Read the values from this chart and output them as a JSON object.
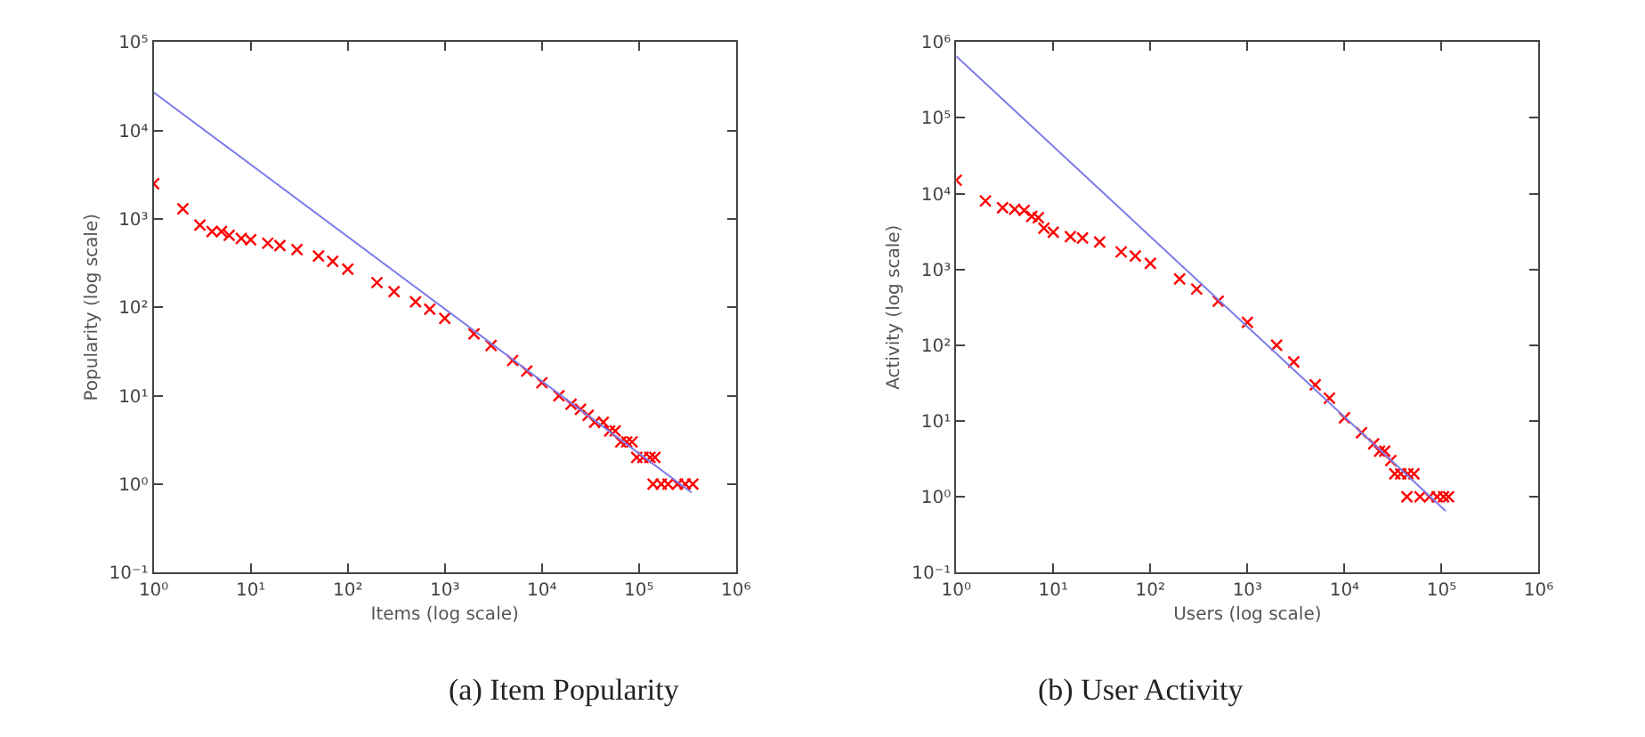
{
  "chart_data": [
    {
      "type": "scatter",
      "title": "(a) Item Popularity",
      "xlabel": "Items (log scale)",
      "ylabel": "Popularity (log scale)",
      "log": "xy",
      "xlim": [
        1,
        1000000
      ],
      "ylim": [
        0.1,
        100000
      ],
      "xticks": [
        {
          "value": 1,
          "label": "10⁰"
        },
        {
          "value": 10,
          "label": "10¹"
        },
        {
          "value": 100,
          "label": "10²"
        },
        {
          "value": 1000,
          "label": "10³"
        },
        {
          "value": 10000,
          "label": "10⁴"
        },
        {
          "value": 100000,
          "label": "10⁵"
        },
        {
          "value": 1000000,
          "label": "10⁶"
        }
      ],
      "yticks": [
        {
          "value": 0.1,
          "label": "10⁻¹"
        },
        {
          "value": 1,
          "label": "10⁰"
        },
        {
          "value": 10,
          "label": "10¹"
        },
        {
          "value": 100,
          "label": "10²"
        },
        {
          "value": 1000,
          "label": "10³"
        },
        {
          "value": 10000,
          "label": "10⁴"
        },
        {
          "value": 100000,
          "label": "10⁵"
        }
      ],
      "series": [
        {
          "marker": "cross",
          "color": "#ff0000",
          "x": [
            1,
            2,
            3,
            4,
            5,
            6,
            8,
            10,
            15,
            20,
            30,
            50,
            70,
            100,
            200,
            300,
            500,
            700,
            1000,
            2000,
            3000,
            5000,
            7000,
            10000,
            15000,
            20000,
            25000,
            30000,
            35000,
            43000,
            50000,
            57000,
            65000,
            75000,
            85000,
            95000,
            110000,
            130000,
            146000,
            140000,
            170000,
            200000,
            250000,
            300000,
            360000
          ],
          "values": [
            2500,
            1300,
            850,
            720,
            720,
            650,
            600,
            580,
            530,
            500,
            450,
            380,
            330,
            270,
            190,
            150,
            115,
            95,
            75,
            50,
            37,
            25,
            19,
            14,
            10,
            8,
            7,
            6,
            5,
            5,
            4,
            4,
            3,
            3,
            3,
            2,
            2,
            2,
            2,
            1,
            1,
            1,
            1,
            1,
            1
          ]
        },
        {
          "type": "line",
          "marker": "none",
          "line_style": "solid",
          "color": "#7b7bea",
          "x": [
            1,
            350000
          ],
          "values": [
            27000,
            0.8
          ]
        }
      ]
    },
    {
      "type": "scatter",
      "title": "(b) User Activity",
      "xlabel": "Users (log scale)",
      "ylabel": "Activity (log scale)",
      "log": "xy",
      "xlim": [
        1,
        1000000
      ],
      "ylim": [
        0.1,
        1000000
      ],
      "xticks": [
        {
          "value": 1,
          "label": "10⁰"
        },
        {
          "value": 10,
          "label": "10¹"
        },
        {
          "value": 100,
          "label": "10²"
        },
        {
          "value": 1000,
          "label": "10³"
        },
        {
          "value": 10000,
          "label": "10⁴"
        },
        {
          "value": 100000,
          "label": "10⁵"
        },
        {
          "value": 1000000,
          "label": "10⁶"
        }
      ],
      "yticks": [
        {
          "value": 0.1,
          "label": "10⁻¹"
        },
        {
          "value": 1,
          "label": "10⁰"
        },
        {
          "value": 10,
          "label": "10¹"
        },
        {
          "value": 100,
          "label": "10²"
        },
        {
          "value": 1000,
          "label": "10³"
        },
        {
          "value": 10000,
          "label": "10⁴"
        },
        {
          "value": 100000,
          "label": "10⁵"
        },
        {
          "value": 1000000,
          "label": "10⁶"
        }
      ],
      "series": [
        {
          "marker": "cross",
          "color": "#ff0000",
          "x": [
            1,
            2,
            3,
            4,
            5,
            6,
            7,
            8,
            10,
            15,
            20,
            30,
            50,
            70,
            100,
            200,
            300,
            500,
            1000,
            2000,
            3000,
            5000,
            7000,
            10000,
            15000,
            20000,
            23000,
            26000,
            30000,
            33000,
            38000,
            45000,
            52000,
            44000,
            60000,
            75000,
            90000,
            105000,
            118000
          ],
          "values": [
            15000,
            8000,
            6500,
            6200,
            6000,
            5000,
            4800,
            3500,
            3100,
            2700,
            2600,
            2300,
            1700,
            1500,
            1200,
            750,
            550,
            380,
            200,
            100,
            60,
            30,
            20,
            11,
            7,
            5,
            4,
            4,
            3,
            2,
            2,
            2,
            2,
            1,
            1,
            1,
            1,
            1,
            1
          ]
        },
        {
          "type": "line",
          "marker": "none",
          "line_style": "solid",
          "color": "#7b7bea",
          "x": [
            1,
            110000
          ],
          "values": [
            650000,
            0.65
          ]
        }
      ]
    }
  ]
}
